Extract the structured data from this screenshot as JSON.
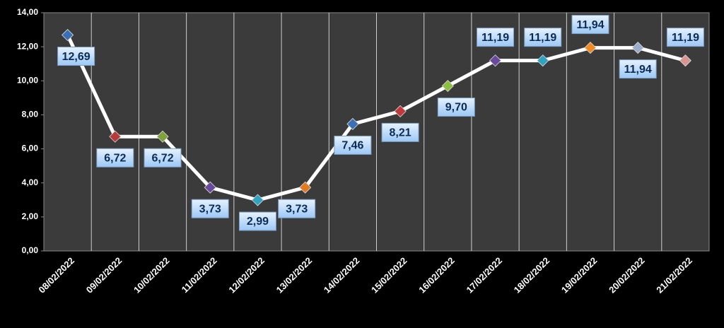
{
  "chart_data": {
    "type": "line",
    "categories": [
      "08/02/2022",
      "09/02/2022",
      "10/02/2022",
      "11/02/2022",
      "12/02/2022",
      "13/02/2022",
      "14/02/2022",
      "15/02/2022",
      "16/02/2022",
      "17/02/2022",
      "18/02/2022",
      "19/02/2022",
      "20/02/2022",
      "21/02/2022"
    ],
    "values": [
      12.69,
      6.72,
      6.72,
      3.73,
      2.99,
      3.73,
      7.46,
      8.21,
      9.7,
      11.19,
      11.19,
      11.94,
      11.94,
      11.19
    ],
    "value_labels": [
      "12,69",
      "6,72",
      "6,72",
      "3,73",
      "2,99",
      "3,73",
      "7,46",
      "8,21",
      "9,70",
      "11,19",
      "11,19",
      "11,94",
      "11,94",
      "11,19"
    ],
    "color": "#ffffff",
    "marker_colors": [
      "#3a6fb5",
      "#b83a3a",
      "#7ea33a",
      "#6a4a9c",
      "#2fa3c0",
      "#e07b20",
      "#3a6fb5",
      "#c0393b",
      "#8cbf3f",
      "#6a4a9c",
      "#2fa3c0",
      "#f08a24",
      "#9aaecb",
      "#d9958f"
    ],
    "ylim": [
      0,
      14
    ],
    "yticks": [
      {
        "value": 0,
        "label": "0,00"
      },
      {
        "value": 2,
        "label": "2,00"
      },
      {
        "value": 4,
        "label": "4,00"
      },
      {
        "value": 6,
        "label": "6,00"
      },
      {
        "value": 8,
        "label": "8,00"
      },
      {
        "value": 10,
        "label": "10,00"
      },
      {
        "value": 12,
        "label": "12,00"
      },
      {
        "value": 14,
        "label": "14,00"
      }
    ]
  }
}
